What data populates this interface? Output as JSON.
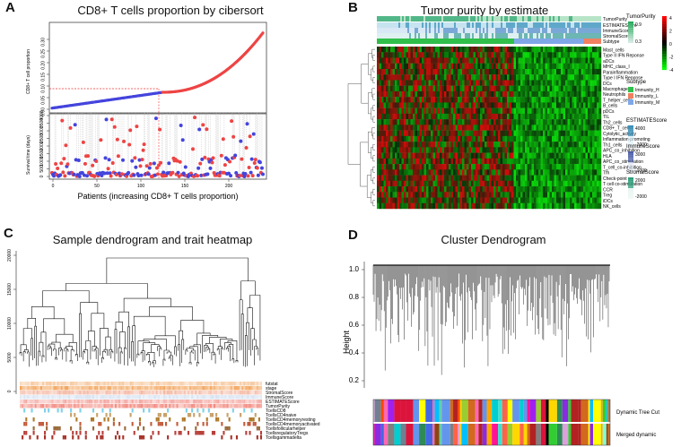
{
  "panels": {
    "a": {
      "letter": "A",
      "title": "CD8+ T cells proportion by cibersort",
      "top_ylabel": "CD8+ T cell proportion",
      "bottom_ylabel": "Survival time (days)",
      "xlabel": "Patients (increasing CD8+ T cells proportion)",
      "top_ticks": [
        "0.00",
        "0.05",
        "0.10",
        "0.15",
        "0.20",
        "0.25",
        "0.30"
      ],
      "bottom_ticks": [
        "0",
        "500",
        "1000",
        "1500",
        "2000",
        "2500",
        "3000",
        "3500",
        "4000"
      ],
      "x_ticks": [
        "0",
        "50",
        "100",
        "150",
        "200"
      ]
    },
    "b": {
      "letter": "B",
      "title": "Tumor purity by estimate",
      "track_labels": [
        "TumorPurity",
        "ESTIMATEScore",
        "ImmuneScore",
        "StromalScore",
        "Subtype"
      ],
      "row_labels": [
        "Mast_cells",
        "Type II IFN Reponse",
        "aDCs",
        "MHC_class_I",
        "Parainflammation",
        "Type I IFN Reponse",
        "DCs",
        "Macrophages",
        "Neutrophils",
        "T_helper_cells",
        "B_cells",
        "pDCs",
        "TIL",
        "Th2_cells",
        "CD8+_T_cells",
        "Cytolytic_activity",
        "Inflammation-promoting",
        "Th1_cells",
        "APC_co_inhibition",
        "HLA",
        "APC_co_stimulation",
        "T_cell_co-inhibition",
        "Tfh",
        "Check-point",
        "T cell co-stimulation",
        "CCR",
        "Treg",
        "iDCs",
        "NK_cells"
      ],
      "legends": {
        "purity_title": "TumorPurity",
        "purity_hi": "0.9",
        "purity_lo": "0.3",
        "scale_ticks": [
          "4",
          "2",
          "0",
          "-2",
          "-4"
        ],
        "subtype_title": "Subtype",
        "subtypes": [
          {
            "name": "Immunity_H",
            "color": "#2fbf4a"
          },
          {
            "name": "Immunity_L",
            "color": "#f08060"
          },
          {
            "name": "Immunity_M",
            "color": "#7fa7e8"
          }
        ],
        "estimate_title": "ESTIMATEScore",
        "estimate_hi": "4000",
        "estimate_lo": "-2000",
        "immune_title": "ImmuneScore",
        "immune_hi": "3000",
        "immune_lo": "-1000",
        "stromal_title": "StromalScore",
        "stromal_hi": "2000",
        "stromal_lo": "-2000"
      }
    },
    "c": {
      "letter": "C",
      "title": "Sample dendrogram and trait heatmap",
      "y_ticks": [
        "0",
        "5000",
        "10000",
        "15000",
        "20000"
      ],
      "trait_labels": [
        "futstat",
        "stage",
        "StromalScore",
        "ImmuneScore",
        "ESTIMATEScore",
        "TumorPurity",
        "TcellsCD8",
        "TcellsCD4naive",
        "TcellsCD4memoryresting",
        "TcellsCD4memoryactivated",
        "Tcellsfollicularhelper",
        "TcellsregulatoryTregs",
        "Tcellsgammadelta"
      ]
    },
    "d": {
      "letter": "D",
      "title": "Cluster Dendrogram",
      "ylabel": "Height",
      "y_ticks": [
        "0.2",
        "0.4",
        "0.6",
        "0.8",
        "1.0"
      ],
      "row_labels": [
        "Dynamic Tree Cut",
        "Merged dynamic"
      ]
    }
  }
}
